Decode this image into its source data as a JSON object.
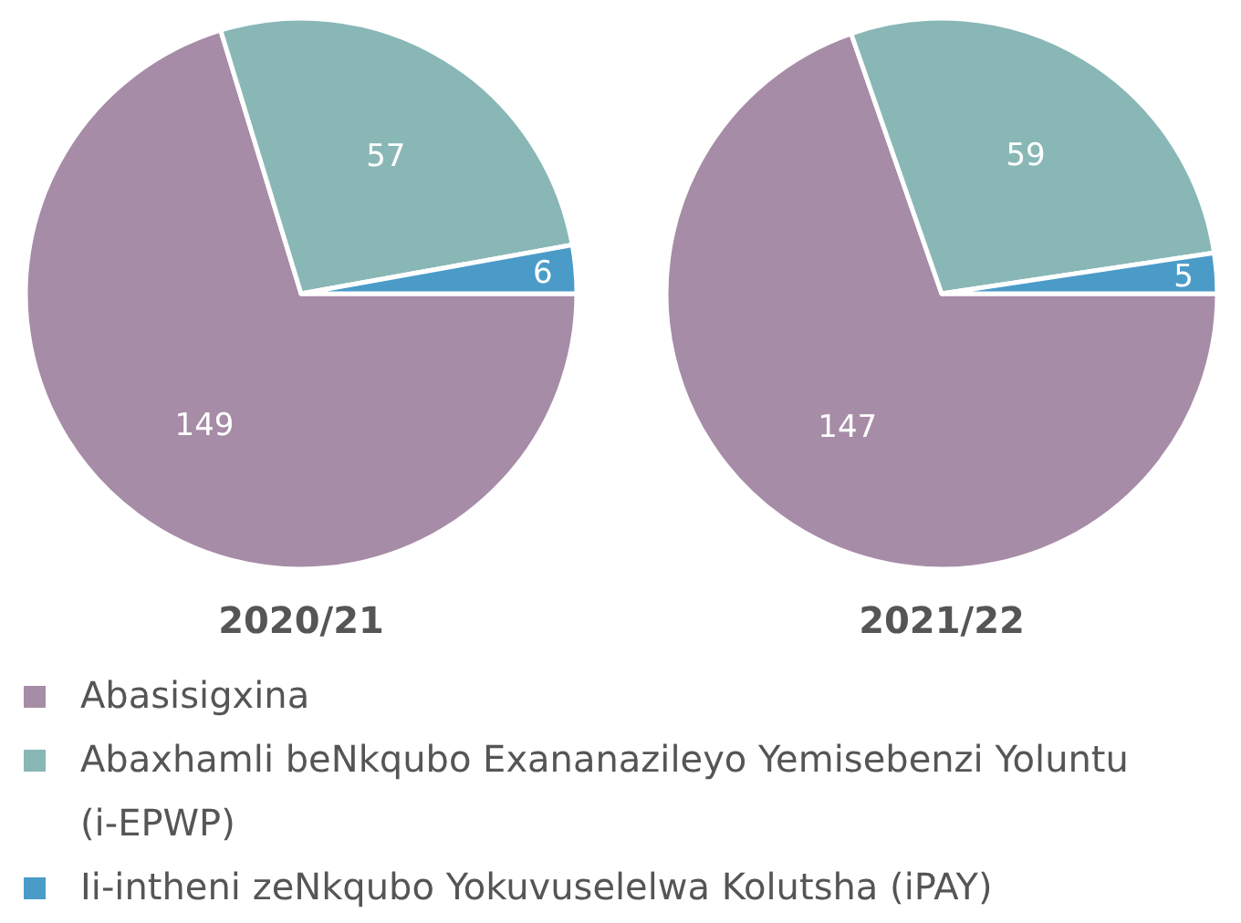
{
  "chart_data": [
    {
      "type": "pie",
      "title": "2020/21",
      "categories": [
        "Abasisigxina",
        "Abaxhamli beNkqubo Exananazileyo Yemisebenzi Yoluntu (i-EPWP)",
        "Ii-intheni zeNkqubo Yokuvuselelwa Kolutsha (iPAY)"
      ],
      "values": [
        149,
        57,
        6
      ],
      "colors": [
        "#a68ca6",
        "#88b7b6",
        "#4b9bc9"
      ],
      "data_labels": true,
      "legend": "bottom"
    },
    {
      "type": "pie",
      "title": "2021/22",
      "values": [
        147,
        59,
        5
      ],
      "colors": [
        "#a68ca6",
        "#88b7b6",
        "#4b9bc9"
      ],
      "data_labels": true
    }
  ]
}
